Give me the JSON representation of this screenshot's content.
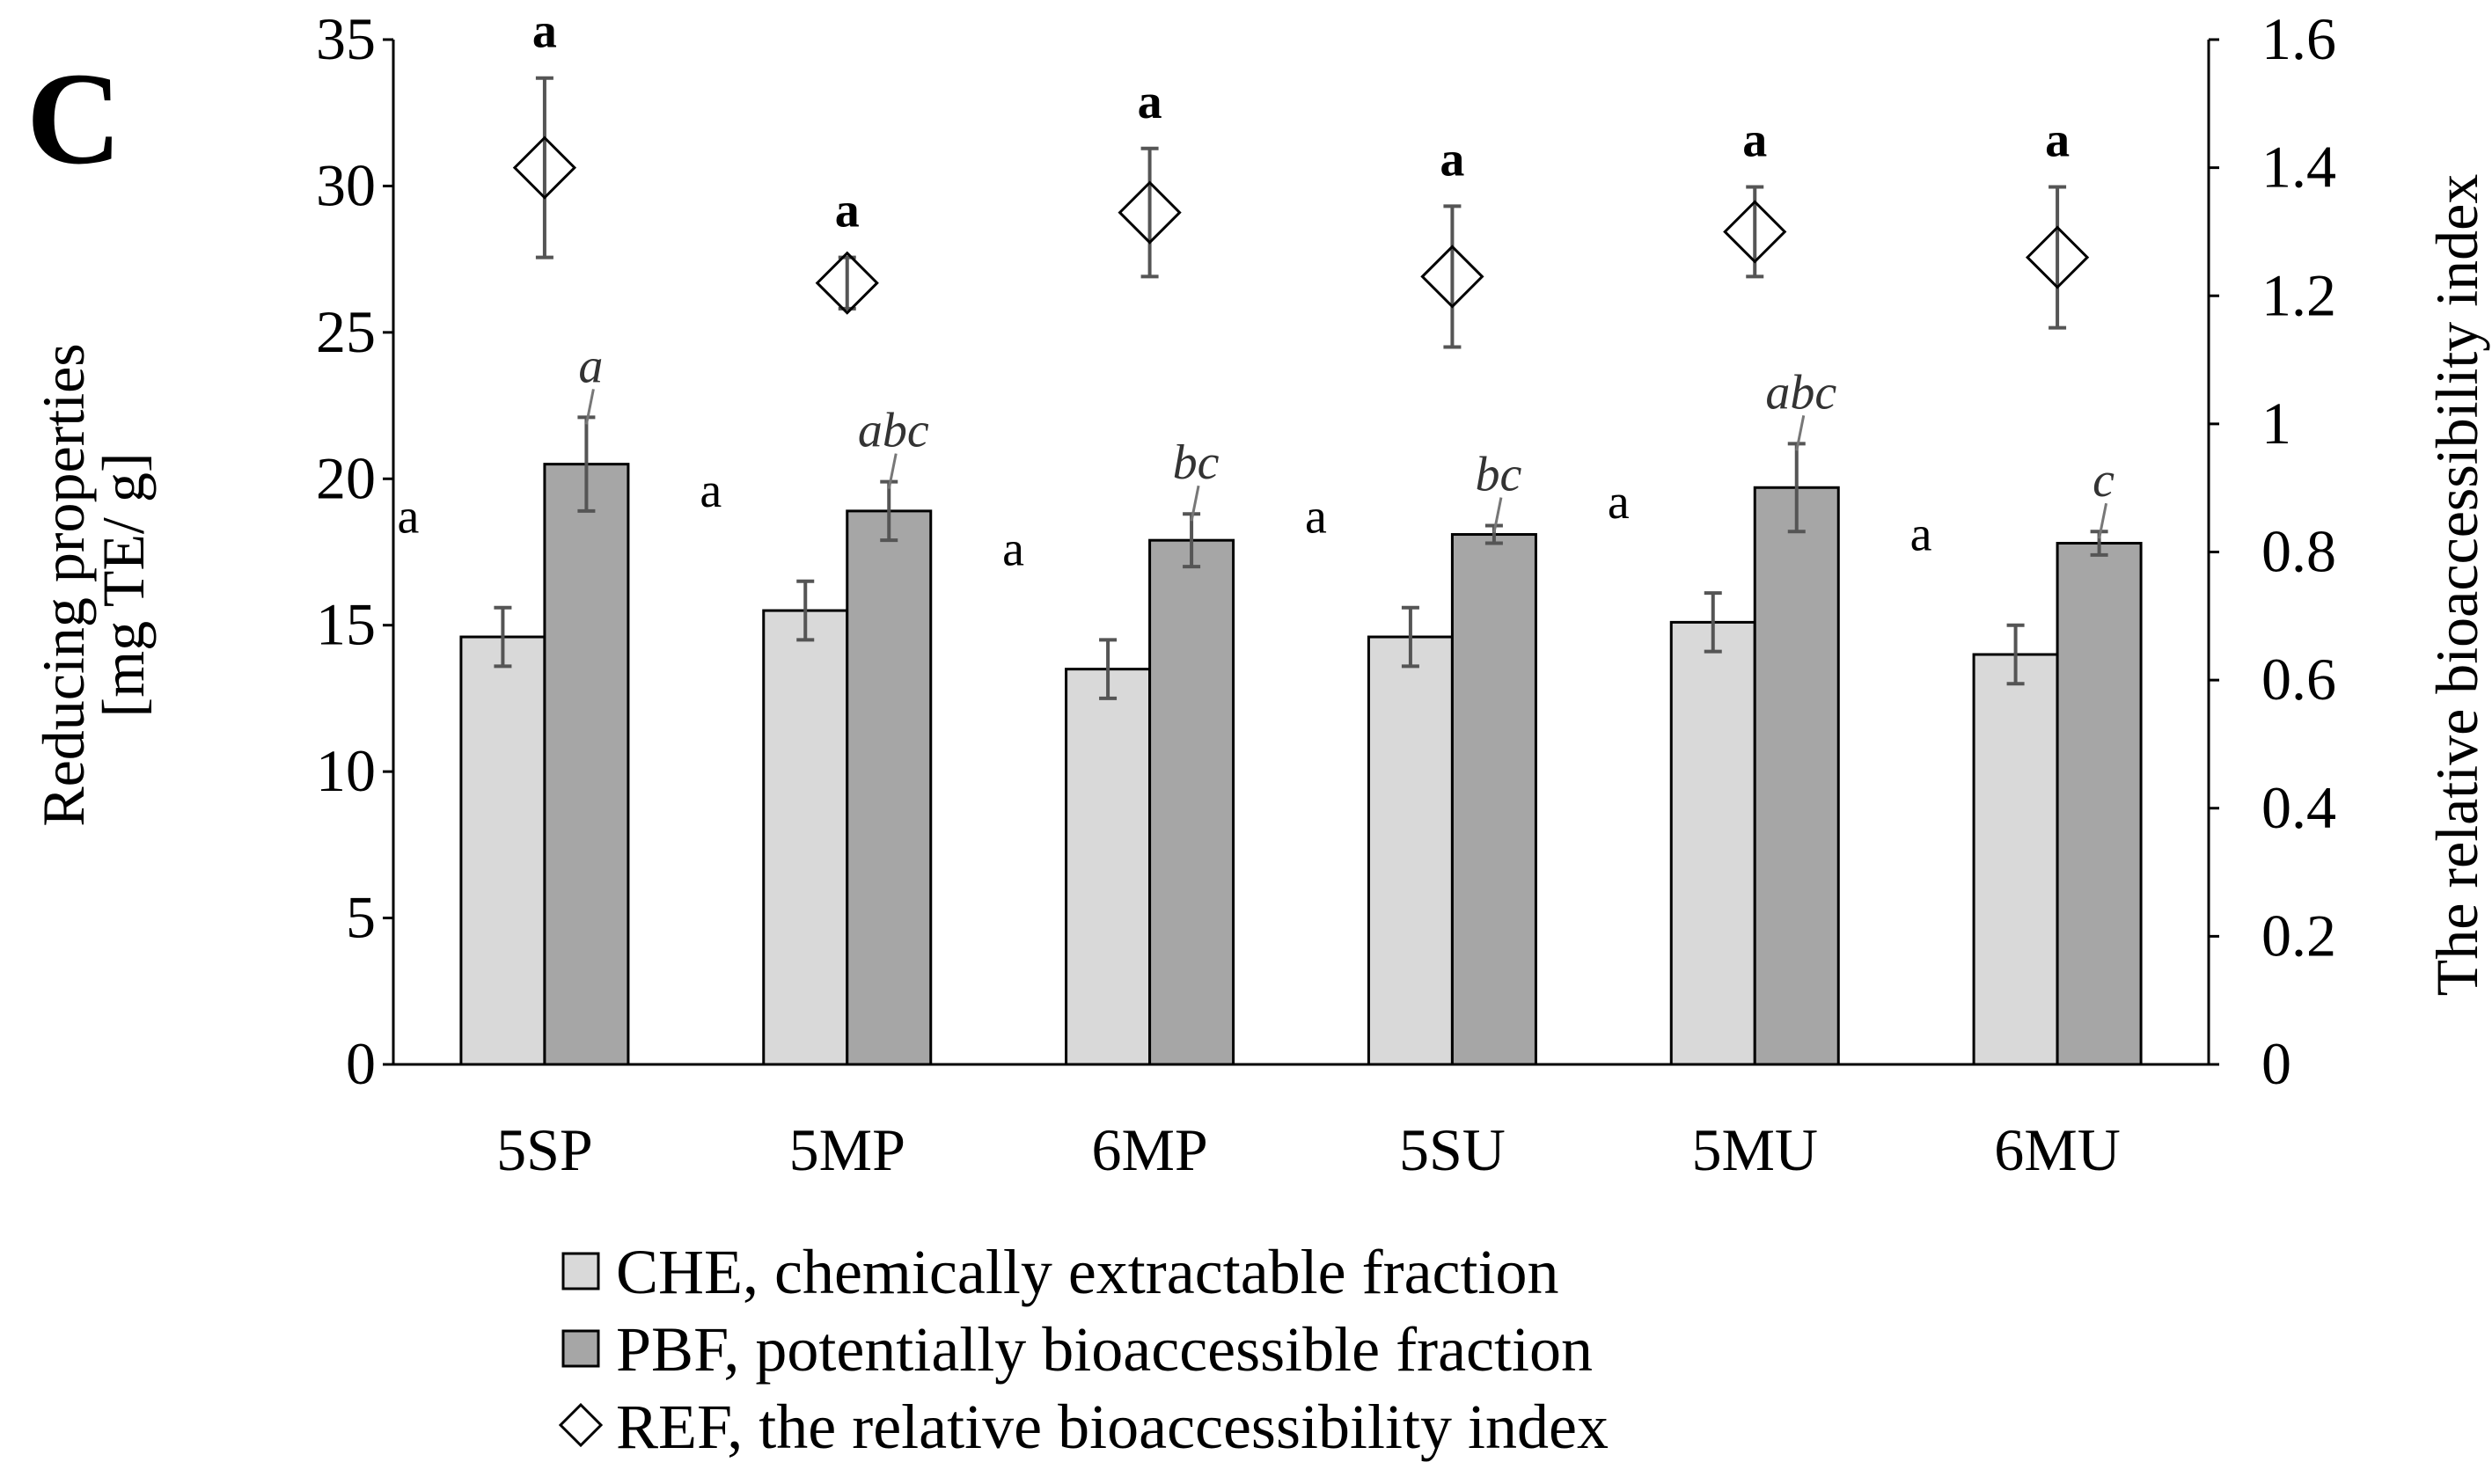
{
  "panel_label": "C",
  "chart_data": {
    "type": "bar",
    "categories": [
      "5SP",
      "5MP",
      "6MP",
      "5SU",
      "5MU",
      "6MU"
    ],
    "ylabel_left_line1": "Reducing properties",
    "ylabel_left_line2": "[mg TE/ g]",
    "ylabel_right": "The relative bioaccessibility index",
    "ylim_left": [
      0,
      35
    ],
    "ylim_right": [
      0,
      1.6
    ],
    "yticks_left": [
      0,
      5,
      10,
      15,
      20,
      25,
      30,
      35
    ],
    "yticks_right": [
      "0",
      "0.2",
      "0.4",
      "0.6",
      "0.8",
      "1",
      "1.2",
      "1.4",
      "1.6"
    ],
    "yticks_right_values": [
      0,
      0.2,
      0.4,
      0.6,
      0.8,
      1.0,
      1.2,
      1.4,
      1.6
    ],
    "series": [
      {
        "name": "CHE",
        "axis": "left",
        "color": "#d9d9d9",
        "values": [
          14.6,
          15.5,
          13.5,
          14.6,
          15.1,
          14.0
        ],
        "errors": [
          1.0,
          1.0,
          1.0,
          1.0,
          1.0,
          1.0
        ],
        "labels": [
          "a",
          "a",
          "a",
          "a",
          "a",
          "a"
        ]
      },
      {
        "name": "PBF",
        "axis": "left",
        "color": "#a6a6a6",
        "values": [
          20.5,
          18.9,
          17.9,
          18.1,
          19.7,
          17.8
        ],
        "errors": [
          1.6,
          1.0,
          0.9,
          0.3,
          1.5,
          0.4
        ],
        "labels": [
          "a",
          "abc",
          "bc",
          "bc",
          "abc",
          "c"
        ]
      },
      {
        "name": "REF",
        "axis": "right",
        "marker": "diamond",
        "values": [
          1.4,
          1.22,
          1.33,
          1.23,
          1.3,
          1.26
        ],
        "errors": [
          0.14,
          0.04,
          0.1,
          0.11,
          0.07,
          0.11
        ],
        "labels": [
          "a",
          "a",
          "a",
          "a",
          "a",
          "a"
        ]
      }
    ],
    "legend": [
      "CHE, chemically extractable fraction",
      "PBF, potentially bioaccessible fraction",
      "REF, the relative bioaccessibility index"
    ],
    "legend_position": "bottom-center"
  }
}
